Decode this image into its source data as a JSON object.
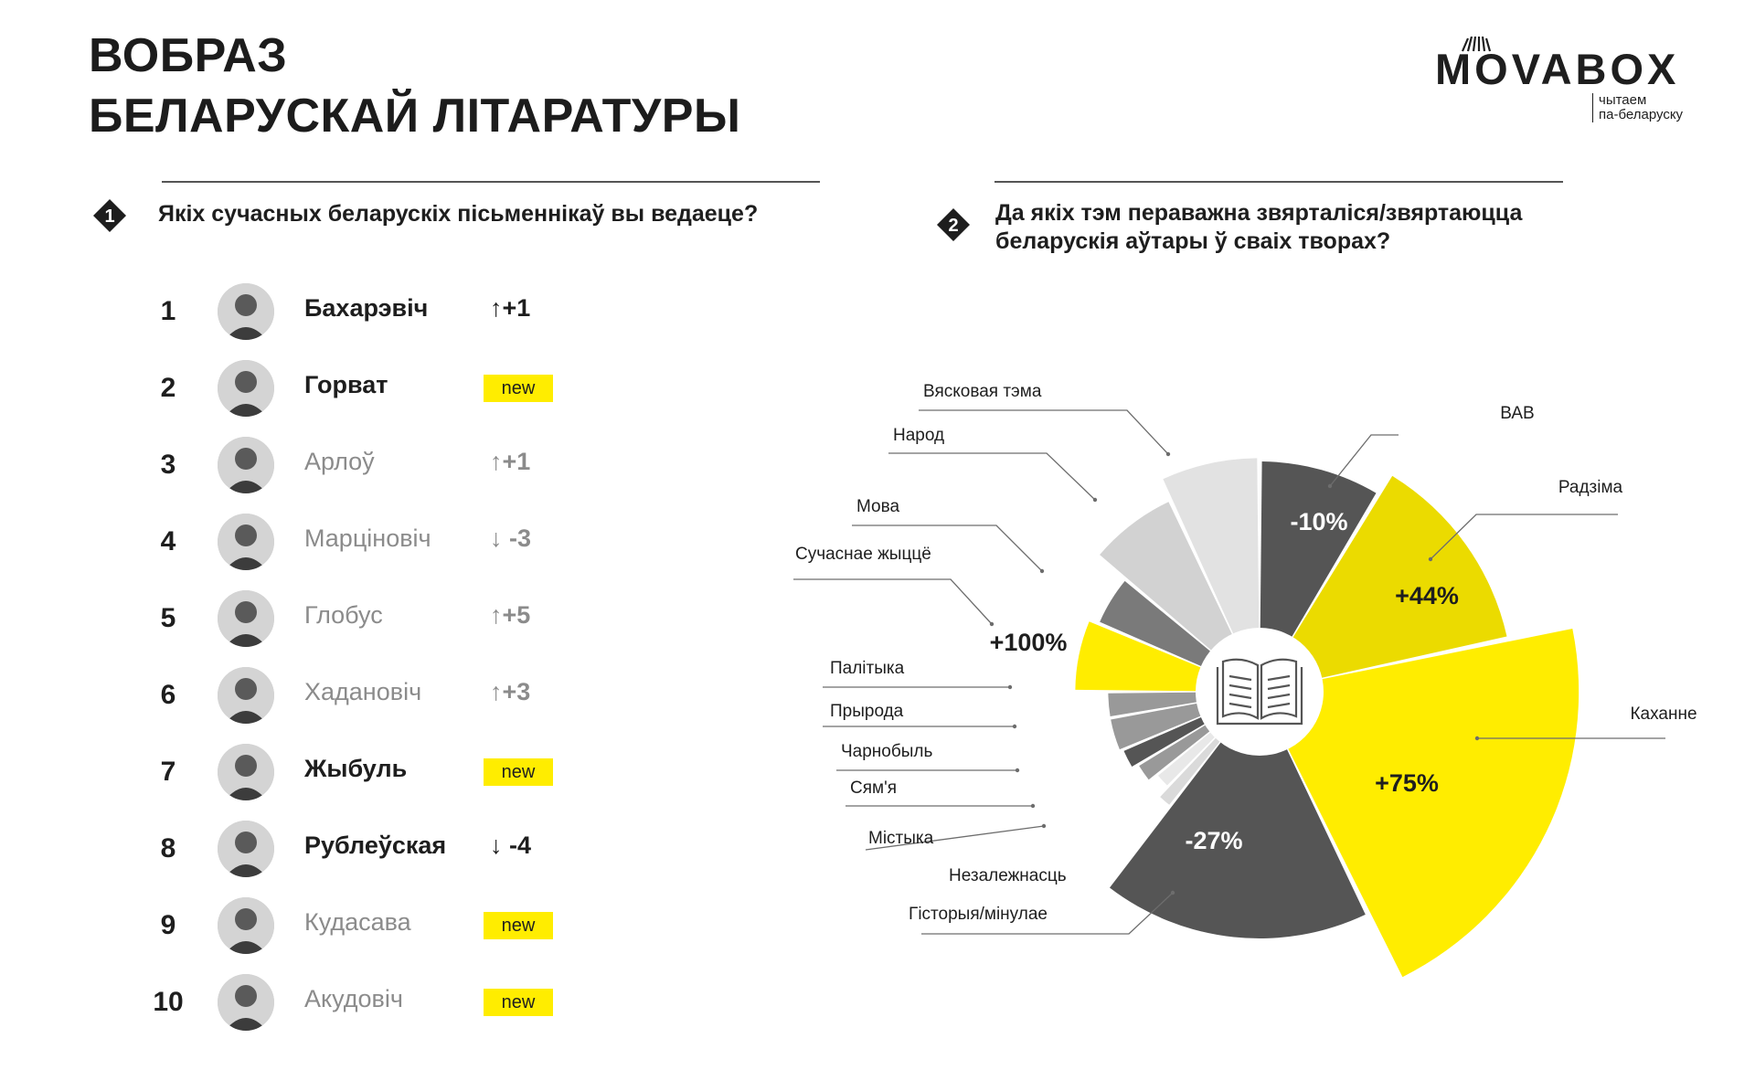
{
  "title": {
    "line1": "ВОБРАЗ",
    "line2": "БЕЛАРУСКАЙ ЛІТАРАТУРЫ"
  },
  "logo": {
    "word": "MOVABOX",
    "tag_line1": "чытаем",
    "tag_line2": "па-беларуску"
  },
  "q1": {
    "number": "1",
    "text": "Якіх сучасных беларускіх пісьменнікаў вы ведаеце?"
  },
  "q2": {
    "number": "2",
    "text_line1": "Да якіх тэм пераважна звярталіся/звяртаюцца",
    "text_line2": "беларускія аўтары ў сваіх творах?"
  },
  "ranking": [
    {
      "rank": "1",
      "name": "Бахарэвіч",
      "bold": true,
      "change": "+1",
      "direction": "up",
      "is_new": false
    },
    {
      "rank": "2",
      "name": "Горват",
      "bold": true,
      "change": "new",
      "direction": "new",
      "is_new": true
    },
    {
      "rank": "3",
      "name": "Арлоў",
      "bold": false,
      "change": "+1",
      "direction": "up",
      "is_new": false
    },
    {
      "rank": "4",
      "name": "Марціновіч",
      "bold": false,
      "change": "-3",
      "direction": "down",
      "is_new": false
    },
    {
      "rank": "5",
      "name": "Глобус",
      "bold": false,
      "change": "+5",
      "direction": "up",
      "is_new": false
    },
    {
      "rank": "6",
      "name": "Хадановіч",
      "bold": false,
      "change": "+3",
      "direction": "up",
      "is_new": false
    },
    {
      "rank": "7",
      "name": "Жыбуль",
      "bold": true,
      "change": "new",
      "direction": "new",
      "is_new": true
    },
    {
      "rank": "8",
      "name": "Рублеўская",
      "bold": true,
      "change": "-4",
      "direction": "down",
      "is_new": false
    },
    {
      "rank": "9",
      "name": "Кудасава",
      "bold": false,
      "change": "new",
      "direction": "new",
      "is_new": true
    },
    {
      "rank": "10",
      "name": "Акудовіч",
      "bold": false,
      "change": "new",
      "direction": "new",
      "is_new": true
    }
  ],
  "colors": {
    "yellow": "#ffed00",
    "yellow_dark": "#ebdb00",
    "dark": "#555555",
    "grey": "#999999",
    "light": "#dadada",
    "text": "#1e1e1e",
    "muted": "#8b8b8b"
  },
  "icons": {
    "center": "open-book-icon",
    "arrow_up": "arrow-up-icon",
    "arrow_down": "arrow-down-icon",
    "question_badge": "diamond-badge-icon"
  },
  "chart_data": {
    "type": "polar-area",
    "title": "",
    "slices": [
      {
        "label": "ВАВ",
        "value_label": "-10%",
        "color": "#555555",
        "r": 0.7,
        "start": 0,
        "end": 31
      },
      {
        "label": "Радзіма",
        "value_label": "+44%",
        "color": "#ebdb00",
        "r": 0.77,
        "start": 31,
        "end": 78
      },
      {
        "label": "Каханне",
        "value_label": "+75%",
        "color": "#ffed00",
        "r": 0.97,
        "start": 78,
        "end": 154
      },
      {
        "label": "Гісторыя/мінулае",
        "value_label": "-27%",
        "color": "#555555",
        "r": 0.75,
        "start": 154,
        "end": 218
      },
      {
        "label": "Незалежнасць",
        "value_label": "",
        "color": "#dadada",
        "r": 0.44,
        "start": 218,
        "end": 224
      },
      {
        "label": "Містыка",
        "value_label": "",
        "color": "#e8e8e8",
        "r": 0.4,
        "start": 224,
        "end": 231
      },
      {
        "label": "Сям'я",
        "value_label": "",
        "color": "#999999",
        "r": 0.43,
        "start": 231,
        "end": 239
      },
      {
        "label": "Чарнобыль",
        "value_label": "",
        "color": "#555555",
        "r": 0.45,
        "start": 239,
        "end": 247
      },
      {
        "label": "Прырода",
        "value_label": "",
        "color": "#999999",
        "r": 0.46,
        "start": 247,
        "end": 260
      },
      {
        "label": "Палітыка",
        "value_label": "",
        "color": "#999999",
        "r": 0.46,
        "start": 260,
        "end": 270
      },
      {
        "label": "Сучаснае жыццё",
        "value_label": "+100%",
        "color": "#ffed00",
        "r": 0.56,
        "start": 270,
        "end": 293
      },
      {
        "label": "Мова",
        "value_label": "",
        "color": "#7a7a7a",
        "r": 0.53,
        "start": 293,
        "end": 310
      },
      {
        "label": "Народ",
        "value_label": "",
        "color": "#d2d2d2",
        "r": 0.64,
        "start": 310,
        "end": 335
      },
      {
        "label": "Вясковая тэма",
        "value_label": "",
        "color": "#e2e2e2",
        "r": 0.71,
        "start": 335,
        "end": 360
      }
    ]
  }
}
